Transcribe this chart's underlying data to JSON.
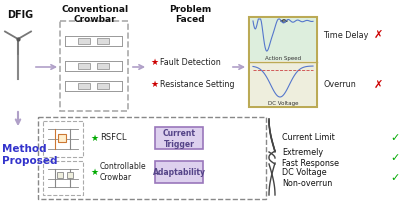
{
  "bg_color": "#ffffff",
  "top_labels": [
    "DFIG",
    "Conventional\nCrowbar",
    "Problem\nFaced"
  ],
  "problem_items": [
    "Fault Detection",
    "Resistance Setting"
  ],
  "proposed_label": "Method\nProposed",
  "component_labels": [
    "RSFCL",
    "Controllable\nCrowbar"
  ],
  "trigger_labels": [
    "Current\nTrigger",
    "Adaptability"
  ],
  "result_labels": [
    "Current Limit",
    "Extremely\nFast Response",
    "DC Voltage\nNon-overrun"
  ],
  "bad_labels": [
    "Time Delay",
    "Overrun"
  ],
  "chart_labels": [
    "Action Speed",
    "DC Voltage"
  ],
  "arrow_color": "#b0a0c8",
  "red_star_color": "#cc0000",
  "green_star_color": "#00aa00",
  "trigger_box_color": "#ddd0ee",
  "trigger_text_color": "#554488",
  "bad_x_color": "#cc0000",
  "good_check_color": "#00aa00",
  "chart_bg_top": "#ddeedd",
  "chart_bg_bot": "#eeeedd",
  "chart_border": "#bbaa55",
  "crowbar_color": "#aaaaaa"
}
